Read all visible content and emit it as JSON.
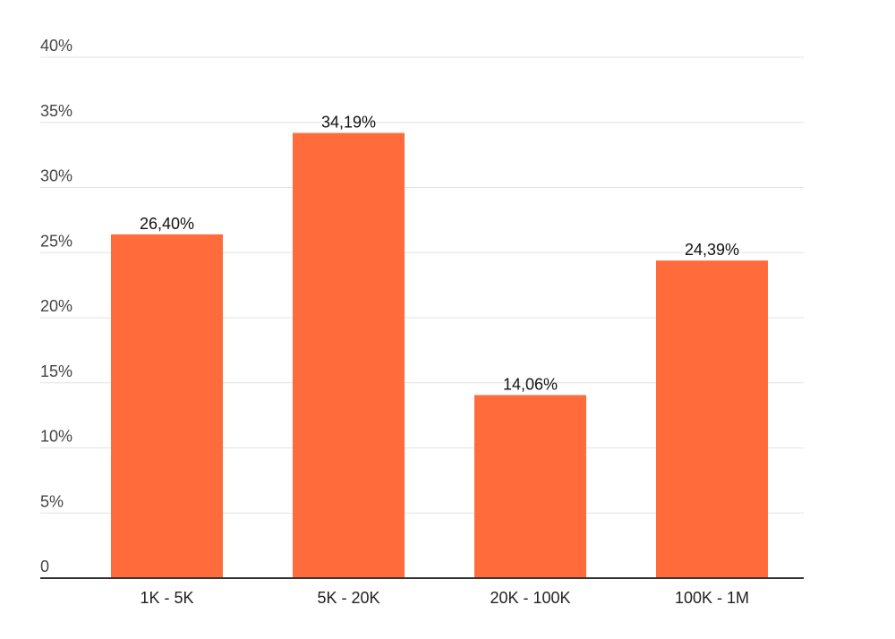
{
  "chart_data": {
    "type": "bar",
    "title": "",
    "xlabel": "",
    "ylabel": "",
    "categories": [
      "1K - 5K",
      "5K - 20K",
      "20K - 100K",
      "100K - 1M"
    ],
    "values": [
      26.4,
      34.19,
      14.06,
      24.39
    ],
    "value_labels": [
      "26,40%",
      "34,19%",
      "14,06%",
      "24,39%"
    ],
    "ylim": [
      0,
      40
    ],
    "y_ticks": [
      0,
      5,
      10,
      15,
      20,
      25,
      30,
      35,
      40
    ],
    "y_tick_labels": [
      "0",
      "5%",
      "10%",
      "15%",
      "20%",
      "25%",
      "30%",
      "35%",
      "40%"
    ],
    "grid": true,
    "legend": "none",
    "bar_color": "#ff6b3b",
    "grid_color": "#e3e3e3",
    "axis_color": "#333333"
  }
}
